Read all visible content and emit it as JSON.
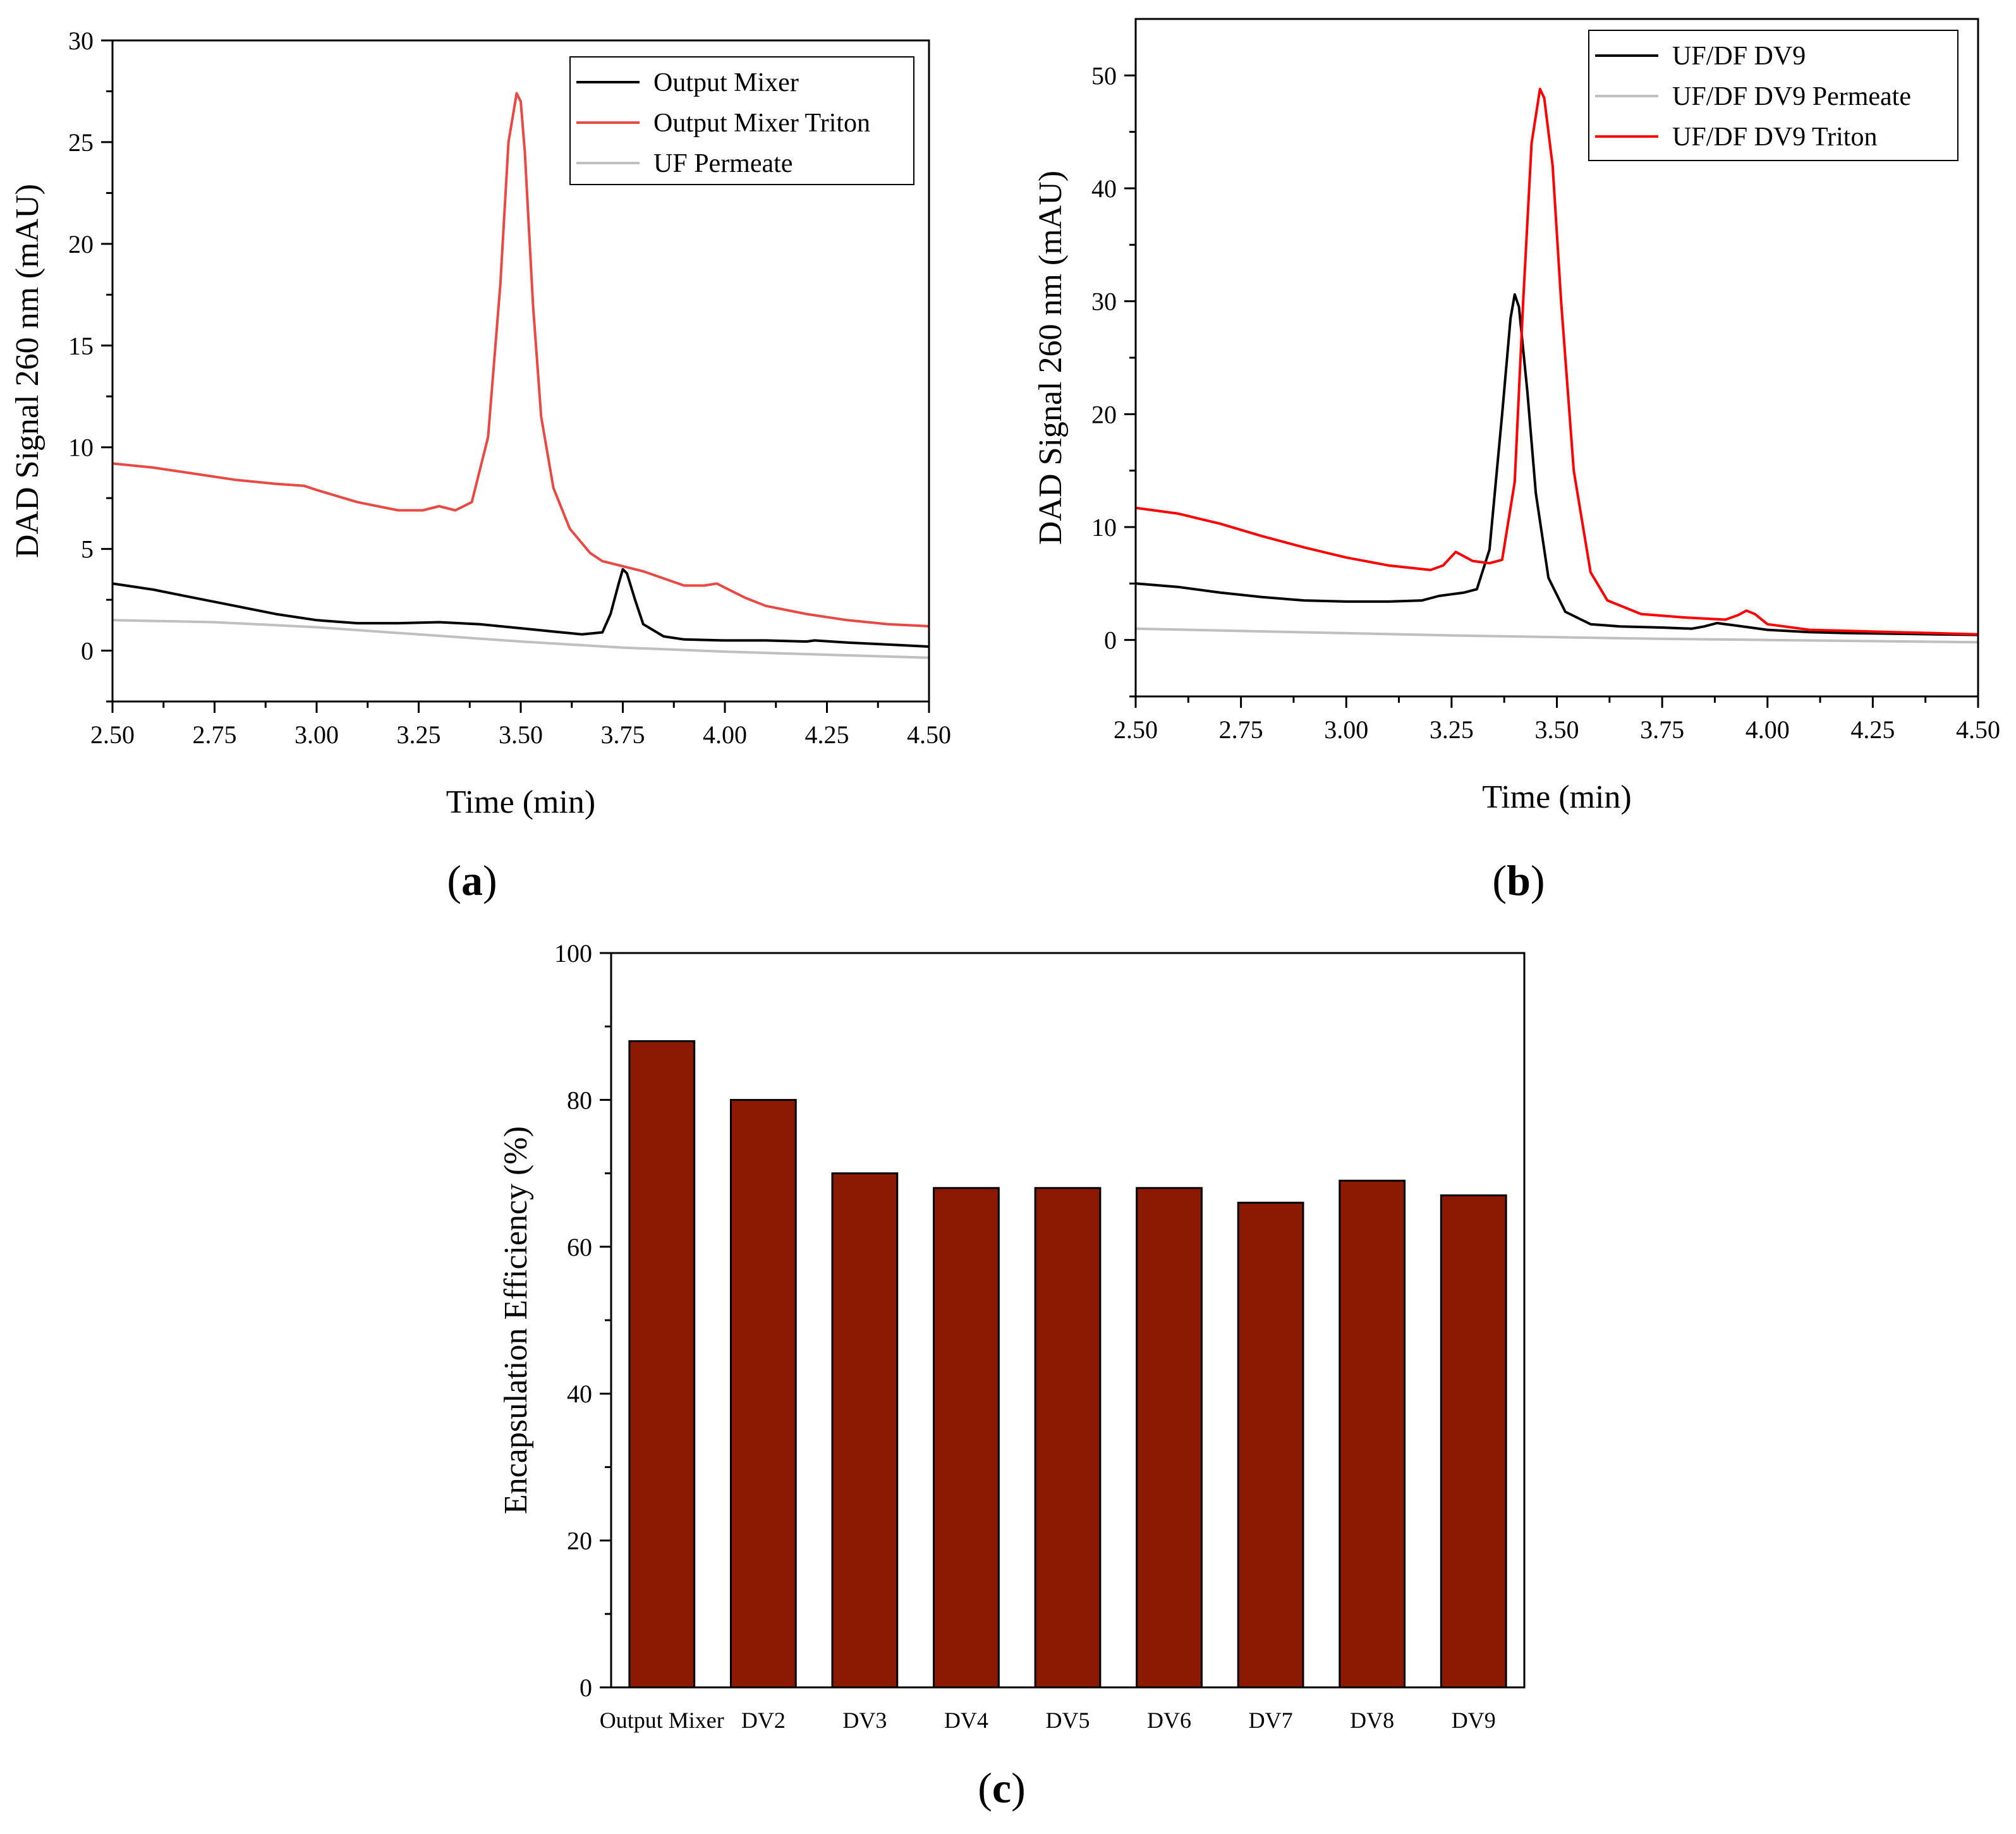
{
  "chart_data": [
    {
      "id": "a",
      "type": "line",
      "panel_label_open": "(",
      "panel_label": "a",
      "panel_label_close": ")",
      "xlabel": "Time (min)",
      "ylabel": "DAD Signal 260 nm (mAU)",
      "xlim": [
        2.5,
        4.5
      ],
      "ylim": [
        -2.5,
        30
      ],
      "xticks": [
        2.5,
        2.75,
        3.0,
        3.25,
        3.5,
        3.75,
        4.0,
        4.25,
        4.5
      ],
      "xtick_labels": [
        "2.50",
        "2.75",
        "3.00",
        "3.25",
        "3.50",
        "3.75",
        "4.00",
        "4.25",
        "4.50"
      ],
      "yticks": [
        0,
        5,
        10,
        15,
        20,
        25,
        30
      ],
      "ytick_labels": [
        "0",
        "5",
        "10",
        "15",
        "20",
        "25",
        "30"
      ],
      "legend_position": "top-right",
      "series": [
        {
          "name": "Output Mixer",
          "color": "#000000",
          "x": [
            2.5,
            2.6,
            2.7,
            2.8,
            2.9,
            3.0,
            3.1,
            3.2,
            3.3,
            3.4,
            3.5,
            3.6,
            3.65,
            3.7,
            3.72,
            3.74,
            3.75,
            3.76,
            3.78,
            3.8,
            3.85,
            3.9,
            4.0,
            4.1,
            4.2,
            4.22,
            4.3,
            4.4,
            4.5
          ],
          "y": [
            3.3,
            3.0,
            2.6,
            2.2,
            1.8,
            1.5,
            1.35,
            1.35,
            1.4,
            1.3,
            1.1,
            0.9,
            0.8,
            0.9,
            1.8,
            3.3,
            4.0,
            3.8,
            2.5,
            1.3,
            0.7,
            0.55,
            0.5,
            0.5,
            0.45,
            0.5,
            0.4,
            0.3,
            0.2
          ]
        },
        {
          "name": "Output Mixer Triton",
          "color": "#e84a43",
          "x": [
            2.5,
            2.6,
            2.7,
            2.8,
            2.9,
            2.97,
            3.0,
            3.1,
            3.2,
            3.26,
            3.3,
            3.34,
            3.38,
            3.42,
            3.45,
            3.47,
            3.49,
            3.5,
            3.51,
            3.53,
            3.55,
            3.58,
            3.62,
            3.67,
            3.7,
            3.8,
            3.9,
            3.95,
            3.98,
            4.0,
            4.05,
            4.1,
            4.2,
            4.3,
            4.4,
            4.5
          ],
          "y": [
            9.2,
            9.0,
            8.7,
            8.4,
            8.2,
            8.1,
            7.9,
            7.3,
            6.9,
            6.9,
            7.1,
            6.9,
            7.3,
            10.5,
            18.0,
            25.0,
            27.4,
            27.0,
            24.5,
            17.0,
            11.5,
            8.0,
            6.0,
            4.8,
            4.4,
            3.9,
            3.2,
            3.2,
            3.3,
            3.1,
            2.6,
            2.2,
            1.8,
            1.5,
            1.3,
            1.2
          ]
        },
        {
          "name": "UF Permeate",
          "color": "#bfbfbf",
          "x": [
            2.5,
            2.75,
            3.0,
            3.25,
            3.5,
            3.75,
            4.0,
            4.25,
            4.5
          ],
          "y": [
            1.5,
            1.4,
            1.15,
            0.8,
            0.45,
            0.15,
            -0.05,
            -0.2,
            -0.35
          ]
        }
      ]
    },
    {
      "id": "b",
      "type": "line",
      "panel_label_open": "(",
      "panel_label": "b",
      "panel_label_close": ")",
      "xlabel": "Time (min)",
      "ylabel": "DAD Signal 260 nm (mAU)",
      "xlim": [
        2.5,
        4.5
      ],
      "ylim": [
        -5,
        55
      ],
      "xticks": [
        2.5,
        2.75,
        3.0,
        3.25,
        3.5,
        3.75,
        4.0,
        4.25,
        4.5
      ],
      "xtick_labels": [
        "2.50",
        "2.75",
        "3.00",
        "3.25",
        "3.50",
        "3.75",
        "4.00",
        "4.25",
        "4.50"
      ],
      "yticks": [
        0,
        10,
        20,
        30,
        40,
        50
      ],
      "ytick_labels": [
        "0",
        "10",
        "20",
        "30",
        "40",
        "50"
      ],
      "legend_position": "top-right",
      "series": [
        {
          "name": "UF/DF DV9",
          "color": "#000000",
          "x": [
            2.5,
            2.6,
            2.7,
            2.8,
            2.9,
            3.0,
            3.1,
            3.18,
            3.22,
            3.28,
            3.31,
            3.34,
            3.37,
            3.39,
            3.4,
            3.41,
            3.43,
            3.45,
            3.48,
            3.52,
            3.58,
            3.65,
            3.75,
            3.82,
            3.85,
            3.88,
            3.92,
            4.0,
            4.1,
            4.2,
            4.3,
            4.4,
            4.5
          ],
          "y": [
            5.0,
            4.7,
            4.2,
            3.8,
            3.5,
            3.4,
            3.4,
            3.5,
            3.9,
            4.2,
            4.5,
            8.0,
            20.0,
            28.5,
            30.6,
            29.5,
            22.0,
            13.0,
            5.5,
            2.5,
            1.4,
            1.2,
            1.1,
            1.0,
            1.2,
            1.5,
            1.3,
            0.9,
            0.7,
            0.6,
            0.55,
            0.5,
            0.45
          ]
        },
        {
          "name": "UF/DF DV9 Permeate",
          "color": "#bfbfbf",
          "x": [
            2.5,
            2.75,
            3.0,
            3.25,
            3.5,
            3.75,
            4.0,
            4.25,
            4.5
          ],
          "y": [
            1.0,
            0.8,
            0.6,
            0.4,
            0.25,
            0.1,
            0.0,
            -0.1,
            -0.2
          ]
        },
        {
          "name": "UF/DF DV9 Triton",
          "color": "#ff0000",
          "x": [
            2.5,
            2.6,
            2.7,
            2.8,
            2.9,
            3.0,
            3.1,
            3.2,
            3.23,
            3.26,
            3.3,
            3.34,
            3.37,
            3.4,
            3.42,
            3.44,
            3.46,
            3.47,
            3.49,
            3.51,
            3.54,
            3.58,
            3.62,
            3.7,
            3.8,
            3.9,
            3.93,
            3.95,
            3.97,
            4.0,
            4.1,
            4.2,
            4.3,
            4.4,
            4.5
          ],
          "y": [
            11.7,
            11.2,
            10.3,
            9.2,
            8.2,
            7.3,
            6.6,
            6.2,
            6.6,
            7.8,
            7.0,
            6.8,
            7.1,
            14.0,
            30.0,
            44.0,
            48.8,
            48.0,
            42.0,
            30.0,
            15.0,
            6.0,
            3.5,
            2.3,
            2.0,
            1.8,
            2.2,
            2.6,
            2.3,
            1.4,
            0.9,
            0.8,
            0.7,
            0.6,
            0.5
          ]
        }
      ]
    },
    {
      "id": "c",
      "type": "bar",
      "panel_label_open": "(",
      "panel_label": "c",
      "panel_label_close": ")",
      "xlabel": "",
      "ylabel": "Encapsulation Efficiency (%)",
      "ylim": [
        0,
        100
      ],
      "yticks": [
        0,
        20,
        40,
        60,
        80,
        100
      ],
      "ytick_labels": [
        "0",
        "20",
        "40",
        "60",
        "80",
        "100"
      ],
      "bar_color": "#8b1a00",
      "categories": [
        "Output Mixer",
        "DV2",
        "DV3",
        "DV4",
        "DV5",
        "DV6",
        "DV7",
        "DV8",
        "DV9"
      ],
      "values": [
        88,
        80,
        70,
        68,
        68,
        68,
        66,
        69,
        67
      ]
    }
  ]
}
